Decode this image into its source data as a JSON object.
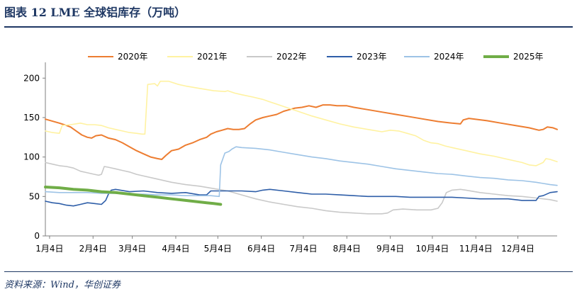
{
  "header": {
    "title": "图表 12   LME 全球铝库存（万吨）"
  },
  "footer": {
    "source": "资料来源：Wind，华创证券"
  },
  "chart_data": {
    "type": "line",
    "title": "LME 全球铝库存（万吨）",
    "xlabel": "",
    "ylabel": "",
    "ylim": [
      0,
      220
    ],
    "yticks": [
      0,
      50,
      100,
      150,
      200
    ],
    "xlim": [
      0,
      365
    ],
    "x_tick_labels": [
      "1月4日",
      "2月4日",
      "3月4日",
      "4月4日",
      "5月4日",
      "6月4日",
      "7月4日",
      "8月4日",
      "9月4日",
      "10月4日",
      "11月4日",
      "12月4日"
    ],
    "x_tick_days": [
      3,
      34,
      62,
      93,
      123,
      154,
      184,
      215,
      246,
      276,
      307,
      337
    ],
    "legend_position": "top",
    "grid": false,
    "series": [
      {
        "name": "2020年",
        "color": "#ed7d31",
        "width": 2,
        "points": [
          [
            0,
            148
          ],
          [
            10,
            143
          ],
          [
            15,
            140
          ],
          [
            18,
            138
          ],
          [
            22,
            133
          ],
          [
            26,
            128
          ],
          [
            30,
            125
          ],
          [
            33,
            124
          ],
          [
            36,
            127
          ],
          [
            40,
            128
          ],
          [
            45,
            124
          ],
          [
            50,
            122
          ],
          [
            55,
            118
          ],
          [
            60,
            113
          ],
          [
            65,
            108
          ],
          [
            70,
            104
          ],
          [
            75,
            100
          ],
          [
            80,
            98
          ],
          [
            83,
            97
          ],
          [
            86,
            102
          ],
          [
            90,
            108
          ],
          [
            95,
            110
          ],
          [
            100,
            115
          ],
          [
            105,
            118
          ],
          [
            110,
            122
          ],
          [
            115,
            125
          ],
          [
            118,
            129
          ],
          [
            122,
            132
          ],
          [
            126,
            134
          ],
          [
            130,
            136
          ],
          [
            134,
            135
          ],
          [
            138,
            135
          ],
          [
            142,
            136
          ],
          [
            146,
            142
          ],
          [
            150,
            147
          ],
          [
            155,
            150
          ],
          [
            160,
            152
          ],
          [
            165,
            154
          ],
          [
            170,
            158
          ],
          [
            174,
            160
          ],
          [
            178,
            162
          ],
          [
            183,
            163
          ],
          [
            188,
            165
          ],
          [
            193,
            163
          ],
          [
            198,
            166
          ],
          [
            203,
            166
          ],
          [
            208,
            165
          ],
          [
            215,
            165
          ],
          [
            220,
            163
          ],
          [
            230,
            160
          ],
          [
            240,
            157
          ],
          [
            250,
            154
          ],
          [
            260,
            151
          ],
          [
            270,
            148
          ],
          [
            280,
            145
          ],
          [
            290,
            143
          ],
          [
            296,
            142
          ],
          [
            298,
            147
          ],
          [
            302,
            149
          ],
          [
            315,
            146
          ],
          [
            325,
            143
          ],
          [
            335,
            140
          ],
          [
            345,
            137
          ],
          [
            352,
            134
          ],
          [
            355,
            135
          ],
          [
            358,
            138
          ],
          [
            362,
            137
          ],
          [
            365,
            135
          ]
        ]
      },
      {
        "name": "2021年",
        "color": "#fff2a1",
        "width": 1.6,
        "points": [
          [
            0,
            133
          ],
          [
            5,
            131
          ],
          [
            10,
            130
          ],
          [
            12,
            140
          ],
          [
            18,
            141
          ],
          [
            25,
            143
          ],
          [
            30,
            141
          ],
          [
            35,
            141
          ],
          [
            40,
            140
          ],
          [
            45,
            137
          ],
          [
            50,
            135
          ],
          [
            55,
            133
          ],
          [
            60,
            131
          ],
          [
            65,
            130
          ],
          [
            69,
            129
          ],
          [
            71,
            129
          ],
          [
            73,
            192
          ],
          [
            78,
            193
          ],
          [
            80,
            190
          ],
          [
            82,
            196
          ],
          [
            88,
            196
          ],
          [
            95,
            192
          ],
          [
            100,
            190
          ],
          [
            110,
            187
          ],
          [
            120,
            184
          ],
          [
            128,
            183
          ],
          [
            130,
            184
          ],
          [
            135,
            181
          ],
          [
            140,
            179
          ],
          [
            148,
            176
          ],
          [
            155,
            173
          ],
          [
            160,
            170
          ],
          [
            165,
            167
          ],
          [
            170,
            164
          ],
          [
            175,
            161
          ],
          [
            180,
            158
          ],
          [
            190,
            152
          ],
          [
            200,
            147
          ],
          [
            210,
            142
          ],
          [
            220,
            138
          ],
          [
            230,
            135
          ],
          [
            240,
            132
          ],
          [
            246,
            134
          ],
          [
            252,
            133
          ],
          [
            258,
            130
          ],
          [
            264,
            127
          ],
          [
            270,
            121
          ],
          [
            275,
            118
          ],
          [
            280,
            117
          ],
          [
            285,
            114
          ],
          [
            290,
            112
          ],
          [
            300,
            108
          ],
          [
            310,
            104
          ],
          [
            320,
            101
          ],
          [
            330,
            97
          ],
          [
            340,
            93
          ],
          [
            345,
            90
          ],
          [
            350,
            89
          ],
          [
            355,
            93
          ],
          [
            357,
            98
          ],
          [
            360,
            97
          ],
          [
            365,
            94
          ]
        ]
      },
      {
        "name": "2022年",
        "color": "#c9c9c9",
        "width": 1.6,
        "points": [
          [
            0,
            93
          ],
          [
            5,
            91
          ],
          [
            10,
            89
          ],
          [
            15,
            88
          ],
          [
            20,
            86
          ],
          [
            25,
            82
          ],
          [
            30,
            80
          ],
          [
            35,
            78
          ],
          [
            38,
            77
          ],
          [
            40,
            78
          ],
          [
            42,
            88
          ],
          [
            45,
            87
          ],
          [
            50,
            85
          ],
          [
            55,
            83
          ],
          [
            60,
            81
          ],
          [
            65,
            78
          ],
          [
            70,
            76
          ],
          [
            80,
            72
          ],
          [
            90,
            68
          ],
          [
            100,
            65
          ],
          [
            110,
            63
          ],
          [
            120,
            60
          ],
          [
            130,
            57
          ],
          [
            140,
            52
          ],
          [
            150,
            47
          ],
          [
            160,
            43
          ],
          [
            170,
            40
          ],
          [
            180,
            37
          ],
          [
            190,
            35
          ],
          [
            200,
            32
          ],
          [
            210,
            30
          ],
          [
            220,
            29
          ],
          [
            230,
            28
          ],
          [
            240,
            28
          ],
          [
            244,
            29
          ],
          [
            248,
            33
          ],
          [
            255,
            34
          ],
          [
            265,
            33
          ],
          [
            275,
            33
          ],
          [
            280,
            35
          ],
          [
            283,
            42
          ],
          [
            286,
            55
          ],
          [
            290,
            58
          ],
          [
            296,
            59
          ],
          [
            300,
            58
          ],
          [
            310,
            55
          ],
          [
            320,
            53
          ],
          [
            330,
            51
          ],
          [
            340,
            50
          ],
          [
            350,
            48
          ],
          [
            360,
            46
          ],
          [
            365,
            44
          ]
        ]
      },
      {
        "name": "2023年",
        "color": "#2e5ea8",
        "width": 1.6,
        "points": [
          [
            0,
            44
          ],
          [
            5,
            42
          ],
          [
            10,
            41
          ],
          [
            15,
            39
          ],
          [
            20,
            38
          ],
          [
            25,
            40
          ],
          [
            30,
            42
          ],
          [
            35,
            41
          ],
          [
            40,
            40
          ],
          [
            43,
            45
          ],
          [
            45,
            53
          ],
          [
            47,
            58
          ],
          [
            50,
            59
          ],
          [
            60,
            56
          ],
          [
            70,
            57
          ],
          [
            80,
            55
          ],
          [
            90,
            54
          ],
          [
            100,
            55
          ],
          [
            110,
            52
          ],
          [
            115,
            52
          ],
          [
            118,
            57
          ],
          [
            130,
            57
          ],
          [
            140,
            57
          ],
          [
            150,
            56
          ],
          [
            155,
            58
          ],
          [
            160,
            59
          ],
          [
            170,
            57
          ],
          [
            180,
            55
          ],
          [
            190,
            53
          ],
          [
            200,
            53
          ],
          [
            210,
            52
          ],
          [
            220,
            51
          ],
          [
            230,
            50
          ],
          [
            240,
            50
          ],
          [
            250,
            50
          ],
          [
            260,
            49
          ],
          [
            270,
            49
          ],
          [
            280,
            49
          ],
          [
            290,
            49
          ],
          [
            300,
            48
          ],
          [
            310,
            47
          ],
          [
            320,
            47
          ],
          [
            330,
            47
          ],
          [
            340,
            45
          ],
          [
            345,
            45
          ],
          [
            350,
            45
          ],
          [
            352,
            50
          ],
          [
            355,
            51
          ],
          [
            360,
            55
          ],
          [
            365,
            56
          ]
        ]
      },
      {
        "name": "2024年",
        "color": "#9dc3e6",
        "width": 1.6,
        "points": [
          [
            0,
            56
          ],
          [
            10,
            55
          ],
          [
            20,
            55
          ],
          [
            30,
            55
          ],
          [
            40,
            54
          ],
          [
            50,
            54
          ],
          [
            60,
            53
          ],
          [
            70,
            53
          ],
          [
            80,
            52
          ],
          [
            90,
            52
          ],
          [
            100,
            51
          ],
          [
            110,
            51
          ],
          [
            118,
            51
          ],
          [
            124,
            50
          ],
          [
            125,
            90
          ],
          [
            128,
            105
          ],
          [
            131,
            107
          ],
          [
            133,
            110
          ],
          [
            136,
            113
          ],
          [
            140,
            112
          ],
          [
            150,
            111
          ],
          [
            160,
            109
          ],
          [
            170,
            106
          ],
          [
            180,
            103
          ],
          [
            190,
            100
          ],
          [
            200,
            98
          ],
          [
            210,
            95
          ],
          [
            220,
            93
          ],
          [
            230,
            91
          ],
          [
            240,
            88
          ],
          [
            250,
            85
          ],
          [
            260,
            83
          ],
          [
            270,
            81
          ],
          [
            280,
            79
          ],
          [
            290,
            78
          ],
          [
            300,
            76
          ],
          [
            310,
            74
          ],
          [
            320,
            73
          ],
          [
            330,
            71
          ],
          [
            340,
            70
          ],
          [
            350,
            68
          ],
          [
            360,
            65
          ],
          [
            365,
            64
          ]
        ]
      },
      {
        "name": "2025年",
        "color": "#70ad47",
        "width": 4,
        "points": [
          [
            0,
            62
          ],
          [
            10,
            61
          ],
          [
            20,
            59
          ],
          [
            30,
            58
          ],
          [
            40,
            56
          ],
          [
            50,
            55
          ],
          [
            60,
            53
          ],
          [
            70,
            51
          ],
          [
            80,
            49
          ],
          [
            90,
            47
          ],
          [
            100,
            45
          ],
          [
            110,
            43
          ],
          [
            115,
            42
          ],
          [
            120,
            41
          ],
          [
            125,
            40
          ]
        ]
      }
    ]
  }
}
